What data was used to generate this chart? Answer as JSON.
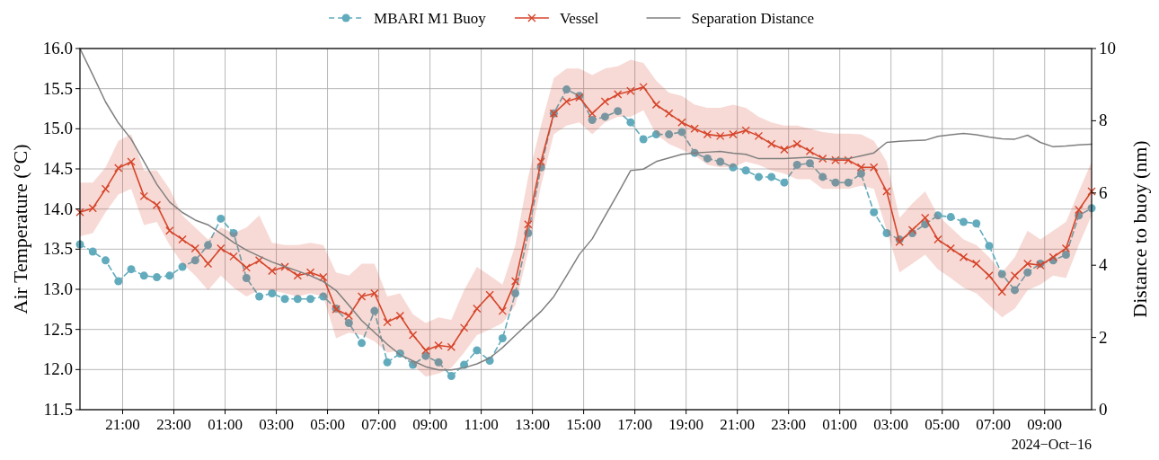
{
  "chart_data": {
    "type": "line",
    "ylabel": "Air Temperature (°C)",
    "y2label": "Distance to buoy (nm)",
    "annotations": [
      "2024−Oct−16"
    ],
    "grid": true,
    "legend": "top",
    "x": [
      "2024-10-14T19:20",
      "2024-10-14T19:50",
      "2024-10-14T20:20",
      "2024-10-14T20:50",
      "2024-10-14T21:20",
      "2024-10-14T21:50",
      "2024-10-14T22:20",
      "2024-10-14T22:50",
      "2024-10-14T23:20",
      "2024-10-14T23:50",
      "2024-10-15T00:20",
      "2024-10-15T00:50",
      "2024-10-15T01:20",
      "2024-10-15T01:50",
      "2024-10-15T02:20",
      "2024-10-15T02:50",
      "2024-10-15T03:20",
      "2024-10-15T03:50",
      "2024-10-15T04:20",
      "2024-10-15T04:50",
      "2024-10-15T05:20",
      "2024-10-15T05:50",
      "2024-10-15T06:20",
      "2024-10-15T06:50",
      "2024-10-15T07:20",
      "2024-10-15T07:50",
      "2024-10-15T08:20",
      "2024-10-15T08:50",
      "2024-10-15T09:20",
      "2024-10-15T09:50",
      "2024-10-15T10:20",
      "2024-10-15T10:50",
      "2024-10-15T11:20",
      "2024-10-15T11:50",
      "2024-10-15T12:20",
      "2024-10-15T12:50",
      "2024-10-15T13:20",
      "2024-10-15T13:50",
      "2024-10-15T14:20",
      "2024-10-15T14:50",
      "2024-10-15T15:20",
      "2024-10-15T15:50",
      "2024-10-15T16:20",
      "2024-10-15T16:50",
      "2024-10-15T17:20",
      "2024-10-15T17:50",
      "2024-10-15T18:20",
      "2024-10-15T18:50",
      "2024-10-15T19:20",
      "2024-10-15T19:50",
      "2024-10-15T20:20",
      "2024-10-15T20:50",
      "2024-10-15T21:20",
      "2024-10-15T21:50",
      "2024-10-15T22:20",
      "2024-10-15T22:50",
      "2024-10-15T23:20",
      "2024-10-15T23:50",
      "2024-10-16T00:20",
      "2024-10-16T00:50",
      "2024-10-16T01:20",
      "2024-10-16T01:50",
      "2024-10-16T02:20",
      "2024-10-16T02:50",
      "2024-10-16T03:20",
      "2024-10-16T03:50",
      "2024-10-16T04:20",
      "2024-10-16T04:50",
      "2024-10-16T05:20",
      "2024-10-16T05:50",
      "2024-10-16T06:20",
      "2024-10-16T06:50",
      "2024-10-16T07:20",
      "2024-10-16T07:50",
      "2024-10-16T08:20",
      "2024-10-16T08:50",
      "2024-10-16T09:20",
      "2024-10-16T09:50",
      "2024-10-16T10:20",
      "2024-10-16T10:50"
    ],
    "xlim": [
      "2024-10-14T19:20",
      "2024-10-16T10:50"
    ],
    "xticks": [
      {
        "value": "2024-10-14T21:00",
        "label": "21:00"
      },
      {
        "value": "2024-10-14T23:00",
        "label": "23:00"
      },
      {
        "value": "2024-10-15T01:00",
        "label": "01:00"
      },
      {
        "value": "2024-10-15T03:00",
        "label": "03:00"
      },
      {
        "value": "2024-10-15T05:00",
        "label": "05:00"
      },
      {
        "value": "2024-10-15T07:00",
        "label": "07:00"
      },
      {
        "value": "2024-10-15T09:00",
        "label": "09:00"
      },
      {
        "value": "2024-10-15T11:00",
        "label": "11:00"
      },
      {
        "value": "2024-10-15T13:00",
        "label": "13:00"
      },
      {
        "value": "2024-10-15T15:00",
        "label": "15:00"
      },
      {
        "value": "2024-10-15T17:00",
        "label": "17:00"
      },
      {
        "value": "2024-10-15T19:00",
        "label": "19:00"
      },
      {
        "value": "2024-10-15T21:00",
        "label": "21:00"
      },
      {
        "value": "2024-10-15T23:00",
        "label": "23:00"
      },
      {
        "value": "2024-10-16T01:00",
        "label": "01:00"
      },
      {
        "value": "2024-10-16T03:00",
        "label": "03:00"
      },
      {
        "value": "2024-10-16T05:00",
        "label": "05:00"
      },
      {
        "value": "2024-10-16T07:00",
        "label": "07:00"
      },
      {
        "value": "2024-10-16T09:00",
        "label": "09:00"
      }
    ],
    "ylim": [
      11.5,
      16.0
    ],
    "yticks": [
      {
        "value": 11.5,
        "label": "11.5"
      },
      {
        "value": 12.0,
        "label": "12.0"
      },
      {
        "value": 12.5,
        "label": "12.5"
      },
      {
        "value": 13.0,
        "label": "13.0"
      },
      {
        "value": 13.5,
        "label": "13.5"
      },
      {
        "value": 14.0,
        "label": "14.0"
      },
      {
        "value": 14.5,
        "label": "14.5"
      },
      {
        "value": 15.0,
        "label": "15.0"
      },
      {
        "value": 15.5,
        "label": "15.5"
      },
      {
        "value": 16.0,
        "label": "16.0"
      }
    ],
    "y2lim": [
      0,
      10
    ],
    "y2ticks": [
      0,
      2,
      4,
      6,
      8,
      10
    ],
    "series": [
      {
        "name": "MBARI M1 Buoy",
        "color": "#62abbd",
        "marker": "circle",
        "line_style": "dashed",
        "values": [
          13.56,
          13.47,
          13.36,
          13.1,
          13.25,
          13.17,
          13.15,
          13.17,
          13.28,
          13.36,
          13.55,
          13.88,
          13.7,
          13.14,
          12.91,
          12.95,
          12.88,
          12.88,
          12.88,
          12.91,
          12.76,
          12.58,
          12.33,
          12.73,
          12.09,
          12.2,
          12.06,
          12.17,
          12.09,
          11.92,
          12.06,
          12.24,
          12.11,
          12.39,
          12.95,
          13.7,
          14.52,
          15.19,
          15.49,
          15.41,
          15.11,
          15.15,
          15.22,
          15.08,
          14.87,
          14.93,
          14.93,
          14.96,
          14.7,
          14.63,
          14.59,
          14.52,
          14.48,
          14.4,
          14.4,
          14.33,
          14.55,
          14.57,
          14.4,
          14.33,
          14.33,
          14.44,
          13.96,
          13.7,
          13.62,
          13.7,
          13.81,
          13.92,
          13.9,
          13.84,
          13.82,
          13.54,
          13.19,
          12.99,
          13.21,
          13.32,
          13.36,
          13.43,
          13.92,
          14.01
        ]
      },
      {
        "name": "Vessel",
        "color": "#d6452b",
        "marker": "cross",
        "line_style": "solid",
        "values": [
          13.96,
          14.01,
          14.25,
          14.51,
          14.59,
          14.16,
          14.05,
          13.73,
          13.62,
          13.51,
          13.32,
          13.51,
          13.41,
          13.27,
          13.36,
          13.23,
          13.28,
          13.17,
          13.21,
          13.15,
          12.75,
          12.67,
          12.91,
          12.95,
          12.59,
          12.67,
          12.43,
          12.24,
          12.3,
          12.28,
          12.52,
          12.76,
          12.93,
          12.73,
          13.1,
          13.81,
          14.59,
          15.19,
          15.34,
          15.39,
          15.19,
          15.34,
          15.43,
          15.47,
          15.52,
          15.3,
          15.19,
          15.08,
          15.0,
          14.93,
          14.91,
          14.93,
          14.98,
          14.91,
          14.81,
          14.74,
          14.81,
          14.72,
          14.63,
          14.61,
          14.61,
          14.52,
          14.52,
          14.22,
          13.59,
          13.74,
          13.89,
          13.62,
          13.51,
          13.4,
          13.32,
          13.17,
          12.97,
          13.17,
          13.32,
          13.3,
          13.4,
          13.51,
          13.99,
          14.22
        ],
        "upper": [
          14.33,
          14.33,
          14.52,
          14.85,
          14.93,
          14.48,
          14.48,
          14.25,
          13.92,
          13.77,
          13.62,
          13.77,
          13.7,
          13.77,
          13.92,
          13.58,
          13.55,
          13.55,
          13.58,
          13.55,
          13.21,
          13.17,
          13.32,
          13.32,
          12.91,
          12.95,
          12.69,
          12.58,
          12.65,
          12.62,
          12.99,
          13.28,
          13.17,
          13.06,
          13.55,
          14.4,
          15.04,
          15.63,
          15.75,
          15.75,
          15.67,
          15.75,
          15.78,
          15.86,
          15.82,
          15.6,
          15.45,
          15.41,
          15.3,
          15.26,
          15.26,
          15.3,
          15.26,
          15.15,
          15.08,
          15.04,
          15.04,
          15.0,
          14.96,
          14.94,
          14.94,
          14.93,
          14.85,
          14.59,
          13.89,
          14.07,
          14.22,
          13.92,
          13.77,
          13.62,
          13.55,
          13.4,
          13.21,
          13.4,
          13.73,
          13.62,
          13.73,
          13.84,
          14.22,
          14.59
        ],
        "lower": [
          13.66,
          13.7,
          13.96,
          14.18,
          14.25,
          13.8,
          13.84,
          13.55,
          13.32,
          13.17,
          12.99,
          13.17,
          13.02,
          12.91,
          12.99,
          12.99,
          12.95,
          12.91,
          12.95,
          12.91,
          12.39,
          12.46,
          12.43,
          12.35,
          12.21,
          12.24,
          12.06,
          11.91,
          11.95,
          12.02,
          12.21,
          12.43,
          12.5,
          12.58,
          12.8,
          13.47,
          14.29,
          14.93,
          15.04,
          15.08,
          14.93,
          15.08,
          15.15,
          15.15,
          15.23,
          14.93,
          14.81,
          14.74,
          14.67,
          14.55,
          14.52,
          14.52,
          14.59,
          14.55,
          14.48,
          14.44,
          14.37,
          14.37,
          14.25,
          14.25,
          14.25,
          14.29,
          14.25,
          13.73,
          13.21,
          13.32,
          13.43,
          13.25,
          13.14,
          13.02,
          12.95,
          12.8,
          12.65,
          12.76,
          12.99,
          13.06,
          13.17,
          13.14,
          13.55,
          13.92
        ]
      },
      {
        "name": "Separation Distance",
        "color": "#7f7f7f",
        "marker": "none",
        "line_style": "solid",
        "axis": "y2",
        "values": [
          10.0,
          9.27,
          8.52,
          7.94,
          7.49,
          6.87,
          6.24,
          5.75,
          5.46,
          5.25,
          5.12,
          4.88,
          4.63,
          4.42,
          4.25,
          4.09,
          3.96,
          3.84,
          3.71,
          3.55,
          3.3,
          2.89,
          2.47,
          2.14,
          1.81,
          1.52,
          1.35,
          1.19,
          1.1,
          1.1,
          1.16,
          1.27,
          1.43,
          1.72,
          2.06,
          2.39,
          2.72,
          3.13,
          3.71,
          4.3,
          4.73,
          5.36,
          5.98,
          6.62,
          6.66,
          6.87,
          6.97,
          7.07,
          7.11,
          7.13,
          7.15,
          7.1,
          7.07,
          6.95,
          6.95,
          6.95,
          6.97,
          6.99,
          6.93,
          6.95,
          6.95,
          7.03,
          7.11,
          7.4,
          7.43,
          7.45,
          7.46,
          7.57,
          7.61,
          7.65,
          7.61,
          7.55,
          7.5,
          7.49,
          7.6,
          7.4,
          7.28,
          7.3,
          7.33,
          7.35
        ]
      }
    ]
  }
}
